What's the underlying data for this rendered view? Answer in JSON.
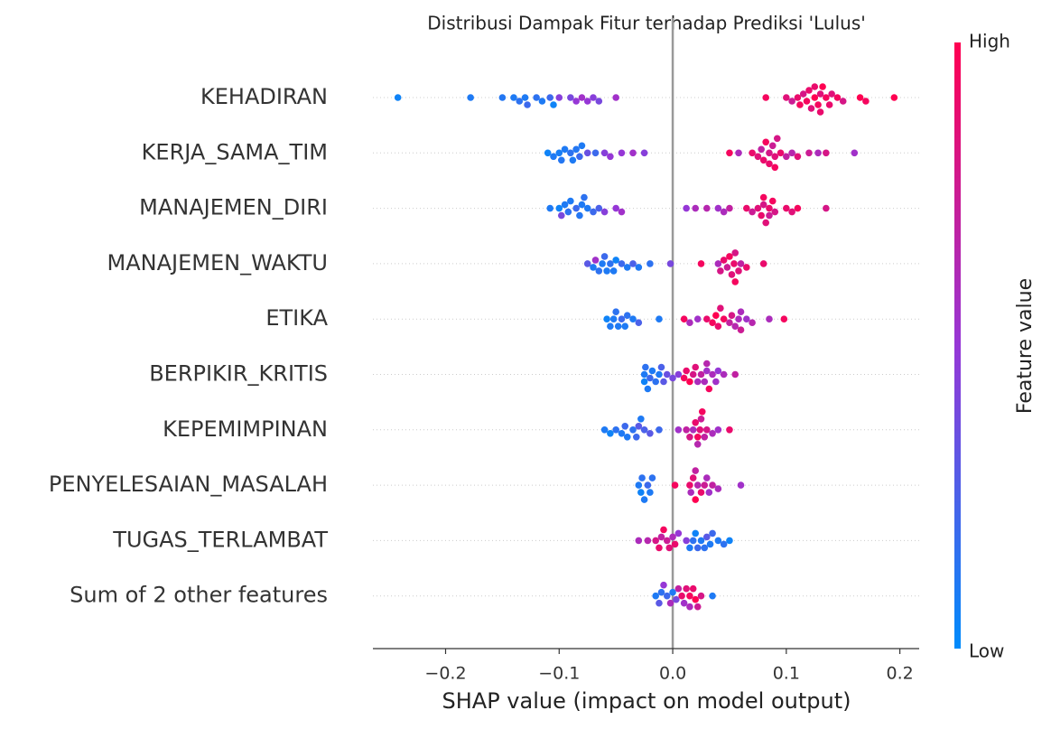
{
  "chart_data": {
    "type": "beeswarm",
    "title": "Distribusi Dampak Fitur terhadap Prediksi 'Lulus'",
    "xlabel": "SHAP value (impact on model output)",
    "xlim": [
      -0.264,
      0.217
    ],
    "xticks": [
      {
        "value": -0.2,
        "label": "−0.2"
      },
      {
        "value": -0.1,
        "label": "−0.1"
      },
      {
        "value": 0,
        "label": "0.0"
      },
      0.1,
      0.2
    ],
    "colorbar": {
      "label": "Feature value",
      "high_label": "High",
      "low_label": "Low",
      "cmap": [
        "#008bfb",
        "#9637d6",
        "#ff0051"
      ]
    },
    "series": [
      {
        "name": "KEHADIRAN",
        "values": [
          -0.242,
          -0.178,
          -0.15,
          -0.14,
          -0.135,
          -0.13,
          -0.128,
          -0.12,
          -0.115,
          -0.108,
          -0.105,
          -0.1,
          -0.09,
          -0.085,
          -0.08,
          -0.075,
          -0.07,
          -0.065,
          -0.05,
          0.082,
          0.1,
          0.105,
          0.11,
          0.112,
          0.115,
          0.118,
          0.12,
          0.122,
          0.125,
          0.125,
          0.128,
          0.13,
          0.13,
          0.132,
          0.135,
          0.138,
          0.14,
          0.145,
          0.15,
          0.165,
          0.17,
          0.195
        ],
        "feature_values": [
          0.05,
          0.1,
          0.12,
          0.1,
          0.15,
          0.1,
          0.2,
          0.15,
          0.1,
          0.2,
          0.05,
          0.45,
          0.4,
          0.5,
          0.55,
          0.5,
          0.45,
          0.4,
          0.55,
          0.95,
          0.85,
          0.75,
          0.9,
          0.95,
          0.8,
          0.95,
          0.9,
          0.85,
          1.0,
          0.9,
          0.95,
          0.85,
          0.9,
          1.0,
          0.95,
          0.9,
          0.85,
          0.95,
          0.8,
          1.0,
          0.95,
          1.0
        ]
      },
      {
        "name": "KERJA_SAMA_TIM",
        "values": [
          -0.11,
          -0.105,
          -0.1,
          -0.098,
          -0.095,
          -0.09,
          -0.088,
          -0.085,
          -0.082,
          -0.08,
          -0.075,
          -0.068,
          -0.06,
          -0.055,
          -0.045,
          -0.035,
          -0.025,
          0.05,
          0.058,
          0.07,
          0.075,
          0.078,
          0.08,
          0.082,
          0.085,
          0.085,
          0.088,
          0.09,
          0.09,
          0.092,
          0.095,
          0.1,
          0.105,
          0.11,
          0.12,
          0.128,
          0.135,
          0.16
        ],
        "feature_values": [
          0.05,
          0.1,
          0.08,
          0.12,
          0.1,
          0.15,
          0.1,
          0.12,
          0.2,
          0.1,
          0.35,
          0.2,
          0.45,
          0.5,
          0.5,
          0.55,
          0.45,
          0.95,
          0.6,
          0.9,
          0.85,
          0.7,
          0.9,
          0.95,
          0.8,
          0.9,
          0.75,
          0.85,
          0.95,
          0.8,
          0.9,
          0.7,
          0.65,
          0.85,
          0.75,
          0.6,
          0.8,
          0.55
        ]
      },
      {
        "name": "MANAJEMEN_DIRI",
        "values": [
          -0.108,
          -0.1,
          -0.098,
          -0.095,
          -0.092,
          -0.09,
          -0.085,
          -0.082,
          -0.08,
          -0.078,
          -0.075,
          -0.07,
          -0.065,
          -0.06,
          -0.05,
          -0.045,
          0.012,
          0.02,
          0.03,
          0.04,
          0.045,
          0.05,
          0.065,
          0.07,
          0.075,
          0.078,
          0.08,
          0.08,
          0.082,
          0.085,
          0.085,
          0.088,
          0.09,
          0.1,
          0.105,
          0.11,
          0.135
        ],
        "feature_values": [
          0.1,
          0.05,
          0.4,
          0.1,
          0.15,
          0.1,
          0.2,
          0.12,
          0.1,
          0.15,
          0.1,
          0.2,
          0.25,
          0.45,
          0.5,
          0.55,
          0.5,
          0.6,
          0.65,
          0.55,
          0.6,
          0.7,
          0.9,
          0.75,
          0.85,
          0.9,
          0.8,
          0.95,
          0.85,
          0.9,
          0.75,
          0.95,
          0.8,
          0.9,
          0.85,
          0.95,
          0.8
        ]
      },
      {
        "name": "MANAJEMEN_WAKTU",
        "values": [
          -0.075,
          -0.07,
          -0.068,
          -0.065,
          -0.062,
          -0.06,
          -0.058,
          -0.055,
          -0.052,
          -0.05,
          -0.045,
          -0.04,
          -0.035,
          -0.03,
          -0.02,
          -0.002,
          0.025,
          0.04,
          0.042,
          0.045,
          0.048,
          0.05,
          0.052,
          0.054,
          0.055,
          0.055,
          0.058,
          0.06,
          0.065,
          0.08
        ],
        "feature_values": [
          0.3,
          0.1,
          0.55,
          0.15,
          0.1,
          0.2,
          0.1,
          0.15,
          0.1,
          0.05,
          0.2,
          0.1,
          0.25,
          0.1,
          0.15,
          0.4,
          0.95,
          0.6,
          0.8,
          0.9,
          0.75,
          0.95,
          0.85,
          0.9,
          0.8,
          0.95,
          0.85,
          0.7,
          0.9,
          0.9
        ]
      },
      {
        "name": "ETIKA",
        "values": [
          -0.058,
          -0.055,
          -0.052,
          -0.05,
          -0.048,
          -0.045,
          -0.042,
          -0.04,
          -0.035,
          -0.03,
          -0.012,
          0.01,
          0.015,
          0.022,
          0.03,
          0.035,
          0.038,
          0.04,
          0.042,
          0.045,
          0.05,
          0.052,
          0.055,
          0.058,
          0.06,
          0.06,
          0.065,
          0.07,
          0.085,
          0.098
        ],
        "feature_values": [
          0.05,
          0.1,
          0.1,
          0.15,
          0.1,
          0.2,
          0.1,
          0.15,
          0.1,
          0.25,
          0.1,
          0.95,
          0.6,
          0.55,
          0.9,
          0.95,
          1.0,
          0.9,
          0.85,
          0.95,
          0.7,
          0.8,
          0.65,
          0.6,
          0.6,
          0.75,
          0.55,
          0.65,
          0.6,
          0.95
        ]
      },
      {
        "name": "BERPIKIR_KRITIS",
        "values": [
          -0.025,
          -0.025,
          -0.024,
          -0.022,
          -0.02,
          -0.018,
          -0.015,
          -0.012,
          -0.01,
          -0.008,
          -0.005,
          0.0,
          0.005,
          0.01,
          0.012,
          0.015,
          0.018,
          0.02,
          0.022,
          0.025,
          0.028,
          0.03,
          0.03,
          0.032,
          0.035,
          0.038,
          0.04,
          0.045,
          0.055
        ],
        "feature_values": [
          0.1,
          0.05,
          0.15,
          0.1,
          0.2,
          0.1,
          0.15,
          0.1,
          0.25,
          0.3,
          0.35,
          0.4,
          0.45,
          0.95,
          0.9,
          1.0,
          0.8,
          0.85,
          0.6,
          0.7,
          0.6,
          0.55,
          0.65,
          0.95,
          0.6,
          0.55,
          0.5,
          0.6,
          0.7
        ]
      },
      {
        "name": "KEPEMIMPINAN",
        "values": [
          -0.06,
          -0.055,
          -0.05,
          -0.045,
          -0.042,
          -0.04,
          -0.035,
          -0.032,
          -0.03,
          -0.028,
          -0.025,
          -0.02,
          -0.012,
          0.005,
          0.012,
          0.015,
          0.018,
          0.02,
          0.022,
          0.022,
          0.024,
          0.025,
          0.026,
          0.028,
          0.03,
          0.035,
          0.04,
          0.05
        ],
        "feature_values": [
          0.1,
          0.05,
          0.15,
          0.1,
          0.2,
          0.1,
          0.15,
          0.2,
          0.3,
          0.1,
          0.25,
          0.3,
          0.2,
          0.55,
          0.7,
          0.8,
          0.6,
          0.9,
          0.95,
          0.65,
          0.85,
          0.75,
          0.95,
          0.7,
          0.8,
          0.6,
          0.55,
          0.9
        ]
      },
      {
        "name": "PENYELESAIAN_MASALAH",
        "values": [
          -0.03,
          -0.028,
          -0.027,
          -0.025,
          -0.022,
          -0.02,
          -0.018,
          0.002,
          0.015,
          0.016,
          0.018,
          0.02,
          0.02,
          0.022,
          0.025,
          0.028,
          0.03,
          0.032,
          0.035,
          0.04,
          0.06
        ],
        "feature_values": [
          0.1,
          0.05,
          0.15,
          0.1,
          0.2,
          0.1,
          0.15,
          0.95,
          0.9,
          0.6,
          0.85,
          1.0,
          0.7,
          0.65,
          0.9,
          0.75,
          0.6,
          0.55,
          0.7,
          0.6,
          0.55
        ]
      },
      {
        "name": "TUGAS_TERLAMBAT",
        "values": [
          -0.03,
          -0.022,
          -0.015,
          -0.012,
          -0.01,
          -0.008,
          -0.005,
          -0.003,
          0.0,
          0.002,
          0.005,
          0.012,
          0.015,
          0.018,
          0.02,
          0.022,
          0.025,
          0.028,
          0.03,
          0.033,
          0.035,
          0.04,
          0.045,
          0.05
        ],
        "feature_values": [
          0.6,
          0.65,
          0.8,
          0.9,
          0.7,
          0.95,
          0.75,
          0.85,
          0.6,
          0.9,
          0.5,
          0.45,
          0.1,
          0.15,
          0.05,
          0.2,
          0.1,
          0.15,
          0.3,
          0.1,
          0.2,
          0.1,
          0.15,
          0.05
        ]
      },
      {
        "name": "Sum of 2 other features",
        "values": [
          -0.015,
          -0.012,
          -0.01,
          -0.008,
          -0.005,
          -0.002,
          0.0,
          0.003,
          0.005,
          0.008,
          0.01,
          0.012,
          0.015,
          0.015,
          0.018,
          0.02,
          0.022,
          0.025,
          0.035
        ],
        "feature_values": [
          0.1,
          0.3,
          0.15,
          0.5,
          0.2,
          0.6,
          0.1,
          0.4,
          0.7,
          0.9,
          0.55,
          0.85,
          0.95,
          0.6,
          0.9,
          1.0,
          0.75,
          0.8,
          0.1
        ]
      }
    ]
  }
}
